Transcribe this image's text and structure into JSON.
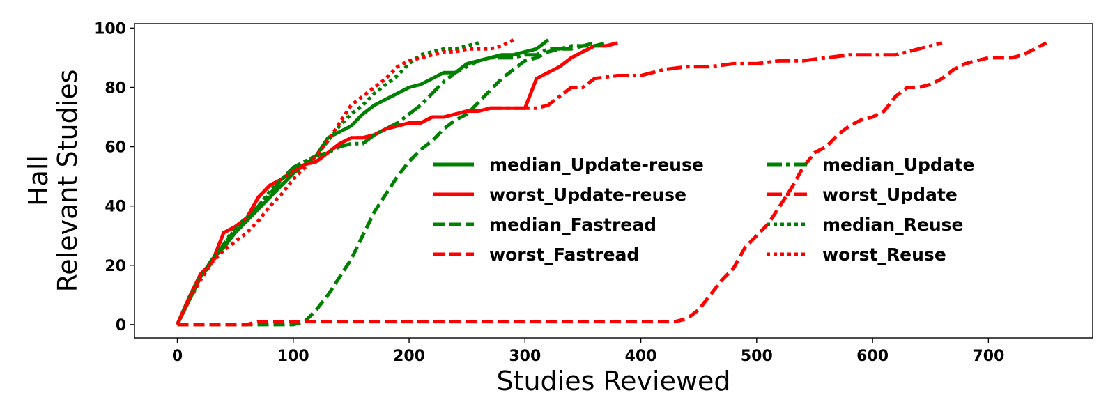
{
  "chart_data": {
    "type": "line",
    "xlabel": "Studies Reviewed",
    "ylabel_lines": [
      "Hall",
      "Relevant Studies"
    ],
    "xlim": [
      -37,
      790
    ],
    "ylim": [
      -4.5,
      101.5
    ],
    "xticks": [
      0,
      100,
      200,
      300,
      400,
      500,
      600,
      700
    ],
    "yticks": [
      0,
      20,
      40,
      60,
      80,
      100
    ],
    "grid": false,
    "legend_position": "center-right",
    "series": [
      {
        "name": "median_Update-reuse",
        "color": "#008000",
        "dash": "solid",
        "x": [
          0,
          10,
          20,
          30,
          40,
          50,
          60,
          70,
          80,
          90,
          100,
          110,
          120,
          130,
          140,
          150,
          160,
          170,
          180,
          190,
          200,
          210,
          220,
          230,
          240,
          250,
          260,
          270,
          280,
          290,
          300,
          310,
          320
        ],
        "y": [
          0,
          8,
          16,
          22,
          26,
          31,
          35,
          39,
          43,
          47,
          51,
          54,
          57,
          63,
          65,
          67,
          71,
          74,
          76,
          78,
          80,
          81,
          83,
          85,
          85,
          88,
          89,
          90,
          91,
          91,
          92,
          93,
          96
        ]
      },
      {
        "name": "worst_Update-reuse",
        "color": "#ff0000",
        "dash": "solid",
        "x": [
          0,
          10,
          20,
          30,
          40,
          50,
          60,
          70,
          80,
          90,
          100,
          110,
          120,
          130,
          140,
          150,
          160,
          170,
          180,
          190,
          200,
          210,
          220,
          230,
          240,
          250,
          260,
          270,
          280,
          290,
          300,
          310,
          320,
          330,
          340,
          350,
          360,
          370,
          380
        ],
        "y": [
          0,
          9,
          17,
          21,
          31,
          33,
          36,
          43,
          47,
          49,
          52,
          54,
          55,
          58,
          61,
          63,
          63,
          64,
          66,
          67,
          68,
          68,
          70,
          70,
          71,
          72,
          72,
          73,
          73,
          73,
          73,
          83,
          85,
          87,
          90,
          92,
          94,
          94,
          95
        ]
      },
      {
        "name": "median_Fastread",
        "color": "#008000",
        "dash": "dashed",
        "x": [
          0,
          20,
          40,
          60,
          80,
          100,
          110,
          120,
          130,
          140,
          150,
          160,
          170,
          180,
          190,
          200,
          210,
          220,
          230,
          240,
          250,
          260,
          270,
          280,
          290,
          300,
          310,
          320,
          330,
          340,
          350,
          360,
          370
        ],
        "y": [
          0,
          0,
          0,
          0,
          0,
          0,
          1,
          5,
          10,
          16,
          22,
          30,
          38,
          44,
          50,
          55,
          59,
          62,
          66,
          69,
          71,
          75,
          79,
          83,
          86,
          89,
          90,
          92,
          93,
          93,
          94,
          94,
          95
        ]
      },
      {
        "name": "worst_Fastread",
        "color": "#ff0000",
        "dash": "dashed",
        "x": [
          0,
          50,
          60,
          70,
          100,
          200,
          300,
          420,
          430,
          440,
          450,
          460,
          470,
          480,
          490,
          500,
          510,
          520,
          530,
          540,
          550,
          560,
          570,
          580,
          590,
          600,
          610,
          620,
          630,
          640,
          650,
          660,
          670,
          680,
          690,
          700,
          710,
          720,
          730,
          740,
          750
        ],
        "y": [
          0,
          0,
          0,
          1,
          1,
          1,
          1,
          1,
          1,
          2,
          5,
          10,
          15,
          19,
          26,
          30,
          34,
          40,
          46,
          53,
          58,
          60,
          64,
          67,
          69,
          70,
          72,
          77,
          80,
          80,
          81,
          83,
          86,
          88,
          89,
          90,
          90,
          90,
          91,
          93,
          95
        ]
      },
      {
        "name": "median_Update",
        "color": "#008000",
        "dash": "dashdot",
        "x": [
          0,
          10,
          20,
          30,
          40,
          50,
          60,
          70,
          80,
          90,
          100,
          110,
          120,
          130,
          140,
          150,
          160,
          170,
          180,
          190,
          200,
          210,
          220,
          230,
          240,
          250,
          260,
          270,
          280,
          290,
          300,
          310,
          320,
          330,
          340,
          350,
          360
        ],
        "y": [
          0,
          9,
          16,
          21,
          27,
          33,
          36,
          40,
          44,
          49,
          53,
          55,
          57,
          58,
          60,
          61,
          61,
          64,
          66,
          68,
          71,
          74,
          78,
          82,
          85,
          87,
          89,
          90,
          90,
          90,
          91,
          91,
          93,
          93,
          94,
          94,
          95
        ]
      },
      {
        "name": "worst_Update",
        "color": "#ff0000",
        "dash": "dashdot",
        "x": [
          0,
          10,
          20,
          30,
          40,
          50,
          60,
          70,
          80,
          90,
          100,
          110,
          120,
          130,
          140,
          150,
          160,
          170,
          180,
          190,
          200,
          210,
          220,
          230,
          240,
          250,
          260,
          270,
          280,
          290,
          300,
          310,
          320,
          330,
          340,
          350,
          360,
          380,
          400,
          420,
          440,
          460,
          480,
          500,
          520,
          540,
          560,
          580,
          600,
          620,
          640,
          660
        ],
        "y": [
          0,
          9,
          17,
          21,
          31,
          33,
          36,
          43,
          47,
          49,
          52,
          54,
          55,
          58,
          61,
          63,
          63,
          64,
          66,
          67,
          68,
          68,
          70,
          70,
          71,
          72,
          72,
          73,
          73,
          73,
          73,
          73,
          74,
          77,
          80,
          80,
          83,
          84,
          84,
          86,
          87,
          87,
          88,
          88,
          89,
          89,
          90,
          91,
          91,
          91,
          93,
          95
        ]
      },
      {
        "name": "median_Reuse",
        "color": "#008000",
        "dash": "dotted",
        "x": [
          0,
          10,
          20,
          30,
          40,
          50,
          60,
          70,
          80,
          90,
          100,
          110,
          120,
          130,
          140,
          150,
          160,
          170,
          180,
          190,
          200,
          210,
          220,
          230,
          240,
          250,
          260
        ],
        "y": [
          0,
          9,
          16,
          22,
          27,
          32,
          35,
          40,
          45,
          49,
          53,
          55,
          57,
          62,
          67,
          71,
          74,
          78,
          81,
          84,
          88,
          91,
          92,
          93,
          93,
          94,
          95
        ]
      },
      {
        "name": "worst_Reuse",
        "color": "#ff0000",
        "dash": "dotted",
        "x": [
          0,
          10,
          20,
          30,
          40,
          50,
          60,
          70,
          80,
          90,
          100,
          110,
          120,
          130,
          140,
          150,
          160,
          170,
          180,
          190,
          200,
          210,
          220,
          230,
          240,
          250,
          260,
          270,
          280,
          290
        ],
        "y": [
          0,
          8,
          15,
          21,
          25,
          28,
          31,
          35,
          40,
          44,
          49,
          53,
          57,
          62,
          68,
          74,
          77,
          80,
          83,
          87,
          89,
          90,
          91,
          92,
          92,
          93,
          93,
          93,
          94,
          96
        ]
      }
    ]
  }
}
